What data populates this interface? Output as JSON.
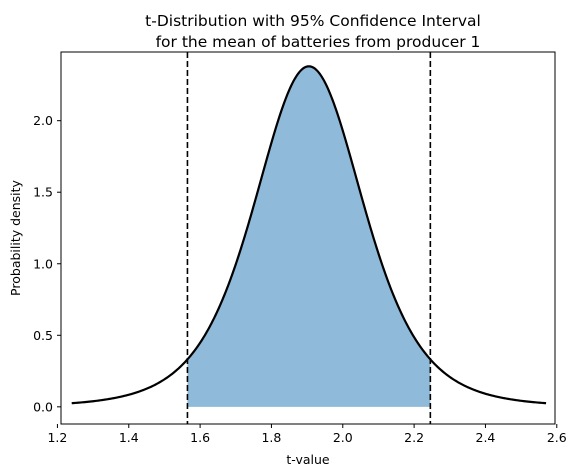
{
  "chart_data": {
    "type": "area",
    "title_line1": "t-Distribution with 95% Confidence Interval",
    "title_line2": "for the mean of batteries from producer 1",
    "xlabel": "t-value",
    "ylabel": "Probability density",
    "xlim": [
      1.21,
      2.595
    ],
    "ylim": [
      -0.12,
      2.48
    ],
    "xticks": [
      1.2,
      1.4,
      1.6,
      1.8,
      2.0,
      2.2,
      2.4,
      2.6
    ],
    "xtick_labels": [
      "1.2",
      "1.4",
      "1.6",
      "1.8",
      "2.0",
      "2.2",
      "2.4",
      "2.6"
    ],
    "yticks": [
      0.0,
      0.5,
      1.0,
      1.5,
      2.0
    ],
    "ytick_labels": [
      "0.0",
      "0.5",
      "1.0",
      "1.5",
      "2.0"
    ],
    "curve": {
      "x_start": 1.24,
      "x_end": 2.57,
      "mean": 1.905,
      "scale": 0.158,
      "df": 5,
      "peak_density": 2.38
    },
    "ci_lower": 1.5645,
    "ci_upper": 2.2455,
    "colors": {
      "fill": "#8fbad9",
      "curve": "#000000",
      "ci_line": "#000000"
    }
  }
}
